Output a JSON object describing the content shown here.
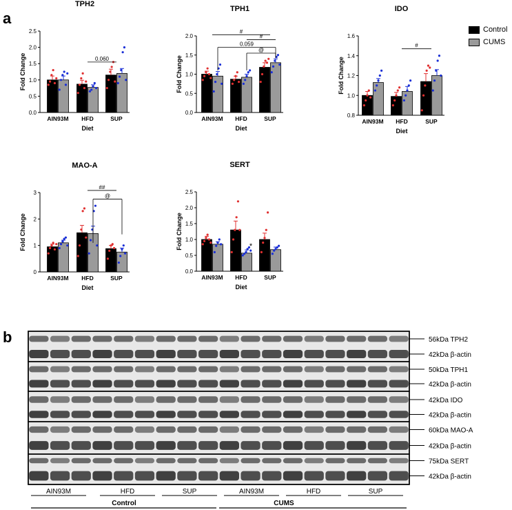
{
  "panels": {
    "a": "a",
    "b": "b"
  },
  "legend": {
    "items": [
      {
        "label": "Control",
        "color": "#000000"
      },
      {
        "label": "CUMS",
        "color": "#9a9a9a"
      }
    ]
  },
  "colors": {
    "control_bar": "#000000",
    "cums_bar": "#9a9a9a",
    "control_dots": "#e03030",
    "cums_dots": "#1a2fd6"
  },
  "chart_data": [
    {
      "type": "bar",
      "title": "TPH2",
      "xlabel": "Diet",
      "ylabel": "Fold Change",
      "categories": [
        "AIN93M",
        "HFD",
        "SUP"
      ],
      "ylim": [
        0,
        2.5
      ],
      "yticks": [
        "0.0",
        "0.5",
        "1.0",
        "1.5",
        "2.0",
        "2.5"
      ],
      "series": [
        {
          "name": "Control",
          "values": [
            1.0,
            0.87,
            1.15
          ],
          "errors": [
            0.12,
            0.12,
            0.18
          ],
          "points": [
            [
              0.85,
              0.95,
              1.15,
              1.3,
              0.9,
              1.05
            ],
            [
              0.6,
              0.85,
              1.05,
              1.2,
              0.75,
              0.95
            ],
            [
              0.75,
              1.0,
              1.25,
              1.4,
              1.55,
              0.95
            ]
          ]
        },
        {
          "name": "CUMS",
          "values": [
            1.0,
            0.77,
            1.2
          ],
          "errors": [
            0.12,
            0.08,
            0.15
          ],
          "points": [
            [
              0.7,
              1.0,
              1.15,
              1.25,
              0.85,
              1.2
            ],
            [
              0.65,
              0.7,
              0.8,
              0.9,
              0.75
            ],
            [
              0.9,
              1.1,
              1.3,
              1.85,
              2.0,
              1.0
            ]
          ]
        }
      ],
      "annotations": [
        {
          "text": "0.060",
          "from": "HFD",
          "to": "SUP",
          "y": 1.55
        }
      ]
    },
    {
      "type": "bar",
      "title": "TPH1",
      "xlabel": "Diet",
      "ylabel": "Fold Change",
      "categories": [
        "AIN93M",
        "HFD",
        "SUP"
      ],
      "ylim": [
        0,
        2.0
      ],
      "yticks": [
        "0.0",
        "0.5",
        "1.0",
        "1.5",
        "2.0"
      ],
      "series": [
        {
          "name": "Control",
          "values": [
            1.0,
            0.87,
            1.18
          ],
          "errors": [
            0.08,
            0.08,
            0.12
          ],
          "points": [
            [
              0.85,
              0.95,
              1.05,
              1.15,
              1.0,
              0.9
            ],
            [
              0.75,
              0.85,
              0.95,
              1.05,
              0.8
            ],
            [
              0.8,
              1.0,
              1.2,
              1.35,
              1.3,
              1.4
            ]
          ]
        },
        {
          "name": "CUMS",
          "values": [
            0.95,
            0.92,
            1.3
          ],
          "errors": [
            0.12,
            0.08,
            0.1
          ],
          "points": [
            [
              0.55,
              0.8,
              1.0,
              1.15,
              1.25,
              0.75
            ],
            [
              0.75,
              0.85,
              0.95,
              1.05,
              1.1
            ],
            [
              1.05,
              1.2,
              1.35,
              1.45,
              1.5,
              1.25
            ]
          ]
        }
      ],
      "annotations": [
        {
          "text": "#",
          "from": "AIN93M",
          "to": "SUP",
          "y": 2.03
        },
        {
          "text": "#",
          "from": "HFD",
          "to": "SUP",
          "y": 1.9
        },
        {
          "text": "0.059",
          "from": "AIN93M",
          "to": "SUP",
          "y": 1.7
        },
        {
          "text": "@",
          "from": "HFD",
          "to": "SUP",
          "y": 1.55
        }
      ]
    },
    {
      "type": "bar",
      "title": "IDO",
      "xlabel": "Diet",
      "ylabel": "Fold Change",
      "categories": [
        "AIN93M",
        "HFD",
        "SUP"
      ],
      "ylim": [
        0.8,
        1.6
      ],
      "yticks": [
        "0.8",
        "1.0",
        "1.2",
        "1.4",
        "1.6"
      ],
      "series": [
        {
          "name": "Control",
          "values": [
            1.0,
            0.99,
            1.14
          ],
          "errors": [
            0.04,
            0.04,
            0.08
          ],
          "points": [
            [
              0.9,
              0.95,
              1.0,
              1.05,
              0.98
            ],
            [
              0.9,
              0.95,
              1.0,
              1.05,
              1.08
            ],
            [
              0.85,
              1.0,
              1.1,
              1.25,
              1.3,
              1.28
            ]
          ]
        },
        {
          "name": "CUMS",
          "values": [
            1.13,
            1.04,
            1.2
          ],
          "errors": [
            0.04,
            0.05,
            0.06
          ],
          "points": [
            [
              1.05,
              1.1,
              1.15,
              1.2,
              1.25
            ],
            [
              0.95,
              1.0,
              1.05,
              1.1,
              1.15
            ],
            [
              1.05,
              1.15,
              1.25,
              1.35,
              1.4,
              1.2
            ]
          ]
        }
      ],
      "annotations": [
        {
          "text": "#",
          "from": "HFD",
          "to": "SUP",
          "y": 1.47
        }
      ]
    },
    {
      "type": "bar",
      "title": "MAO-A",
      "xlabel": "Diet",
      "ylabel": "Fold Change",
      "categories": [
        "AIN93M",
        "HFD",
        "SUP"
      ],
      "ylim": [
        0,
        3
      ],
      "yticks": [
        "0",
        "1",
        "2",
        "3"
      ],
      "series": [
        {
          "name": "Control",
          "values": [
            0.95,
            1.48,
            0.88
          ],
          "errors": [
            0.1,
            0.28,
            0.12
          ],
          "points": [
            [
              0.7,
              0.9,
              1.0,
              1.1,
              0.85,
              1.05
            ],
            [
              0.6,
              1.0,
              1.6,
              2.3,
              2.4,
              1.3
            ],
            [
              0.5,
              0.8,
              1.0,
              1.05,
              0.9
            ]
          ]
        },
        {
          "name": "CUMS",
          "values": [
            1.1,
            1.45,
            0.75
          ],
          "errors": [
            0.1,
            0.28,
            0.15
          ],
          "points": [
            [
              0.9,
              1.05,
              1.15,
              1.25,
              1.3,
              1.0
            ],
            [
              0.7,
              1.2,
              1.6,
              2.3,
              2.5,
              1.0
            ],
            [
              0.35,
              0.6,
              0.85,
              1.0,
              0.7
            ]
          ]
        }
      ],
      "annotations": [
        {
          "text": "##",
          "from": "HFD",
          "to": "SUP",
          "y": 3.08
        },
        {
          "text": "@",
          "from": "HFD",
          "to": "SUP",
          "y": 2.75
        }
      ]
    },
    {
      "type": "bar",
      "title": "SERT",
      "xlabel": "Diet",
      "ylabel": "Fold Change",
      "categories": [
        "AIN93M",
        "HFD",
        "SUP"
      ],
      "ylim": [
        0,
        2.5
      ],
      "yticks": [
        "0.0",
        "0.5",
        "1.0",
        "1.5",
        "2.0",
        "2.5"
      ],
      "series": [
        {
          "name": "Control",
          "values": [
            1.0,
            1.3,
            1.0
          ],
          "errors": [
            0.1,
            0.28,
            0.2
          ],
          "points": [
            [
              0.85,
              0.95,
              1.05,
              1.15,
              1.0,
              0.9
            ],
            [
              0.6,
              1.0,
              1.3,
              1.7,
              2.2,
              1.3
            ],
            [
              0.6,
              0.9,
              1.05,
              1.3,
              1.85
            ]
          ]
        },
        {
          "name": "CUMS",
          "values": [
            0.85,
            0.57,
            0.68
          ],
          "errors": [
            0.08,
            0.1,
            0.08
          ],
          "points": [
            [
              0.6,
              0.8,
              0.9,
              1.0,
              0.85
            ],
            [
              0.5,
              0.55,
              0.6,
              0.7,
              0.75,
              0.65
            ],
            [
              0.55,
              0.65,
              0.7,
              0.75,
              0.8
            ]
          ]
        }
      ],
      "annotations": [
        {
          "text": "*",
          "star_on": "HFD"
        }
      ]
    }
  ],
  "blots": [
    {
      "label": "56kDa TPH2"
    },
    {
      "label": "42kDa β-actin"
    },
    {
      "label": "50kDa TPH1"
    },
    {
      "label": "42kDa β-actin"
    },
    {
      "label": "42kDa IDO"
    },
    {
      "label": "42kDa β-actin"
    },
    {
      "label": "60kDa MAO-A"
    },
    {
      "label": "42kDa β-actin"
    },
    {
      "label": "75kDa SERT"
    },
    {
      "label": "42kDa β-actin"
    }
  ],
  "lanes": {
    "diets": [
      "AIN93M",
      "HFD",
      "SUP",
      "AIN93M",
      "HFD",
      "SUP"
    ],
    "groups": [
      "Control",
      "CUMS"
    ]
  }
}
